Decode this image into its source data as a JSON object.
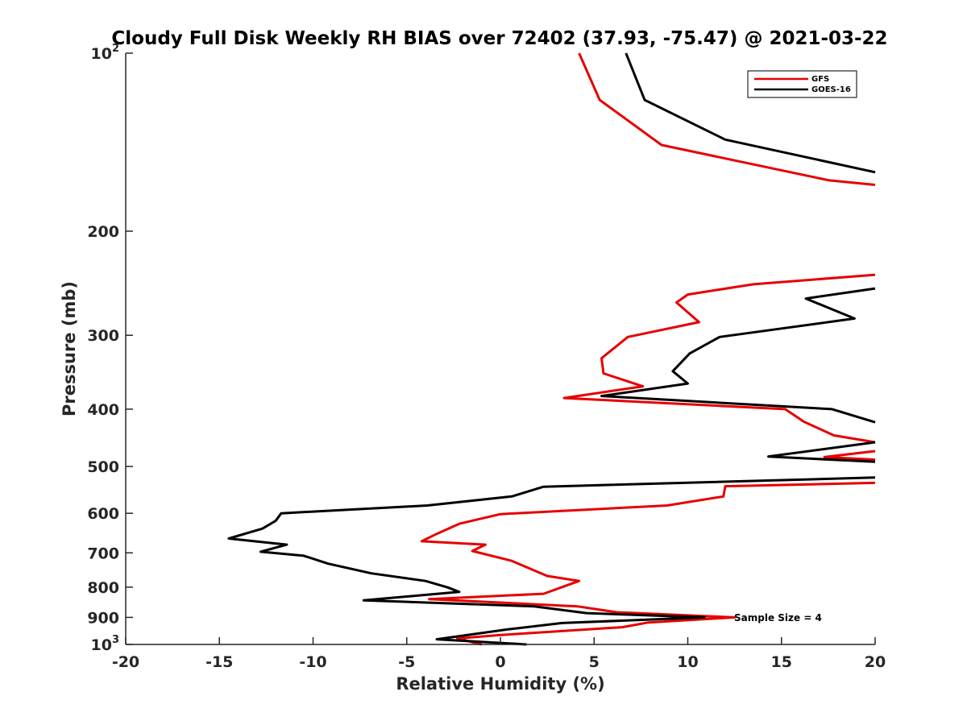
{
  "chart_data": {
    "type": "line",
    "title": "Cloudy Full Disk Weekly RH BIAS over 72402 (37.93, -75.47) @ 2021-03-22",
    "xlabel": "Relative Humidity (%)",
    "ylabel": "Pressure (mb)",
    "xlim": [
      -20,
      20
    ],
    "ylim": [
      100,
      1000
    ],
    "yscale": "log",
    "y_reversed": true,
    "xticks": [
      -20,
      -15,
      -10,
      -5,
      0,
      5,
      10,
      15,
      20
    ],
    "xtick_labels": [
      "-20",
      "-15",
      "-10",
      "-5",
      "0",
      "5",
      "10",
      "15",
      "20"
    ],
    "yticks": [
      100,
      200,
      300,
      400,
      500,
      600,
      700,
      800,
      900,
      1000
    ],
    "ytick_labels": [
      {
        "base": "10",
        "exp": "2"
      },
      {
        "base": "200",
        "exp": ""
      },
      {
        "base": "300",
        "exp": ""
      },
      {
        "base": "400",
        "exp": ""
      },
      {
        "base": "500",
        "exp": ""
      },
      {
        "base": "600",
        "exp": ""
      },
      {
        "base": "700",
        "exp": ""
      },
      {
        "base": "800",
        "exp": ""
      },
      {
        "base": "900",
        "exp": ""
      },
      {
        "base": "10",
        "exp": "3"
      }
    ],
    "grid": false,
    "legend_position": "top-right",
    "annotation": "Sample Size = 4",
    "series": [
      {
        "name": "GFS",
        "color": "#e60000",
        "points": [
          [
            4.2,
            100
          ],
          [
            5.3,
            120
          ],
          [
            8.6,
            143
          ],
          [
            17.5,
            164
          ],
          [
            20,
            167
          ],
          [
            null,
            null
          ],
          [
            20,
            237
          ],
          [
            13.5,
            246
          ],
          [
            10,
            256
          ],
          [
            9.4,
            264
          ],
          [
            10.6,
            285
          ],
          [
            6.8,
            302
          ],
          [
            5.4,
            328
          ],
          [
            5.5,
            348
          ],
          [
            7.6,
            366
          ],
          [
            3.4,
            383
          ],
          [
            15.2,
            400
          ],
          [
            16.2,
            420
          ],
          [
            17.8,
            443
          ],
          [
            20,
            455
          ],
          [
            null,
            null
          ],
          [
            20,
            471
          ],
          [
            17.3,
            482
          ],
          [
            20,
            487
          ],
          [
            null,
            null
          ],
          [
            20,
            533
          ],
          [
            12,
            540
          ],
          [
            11.9,
            562
          ],
          [
            8.9,
            582
          ],
          [
            0,
            602
          ],
          [
            -2.2,
            625
          ],
          [
            -3.4,
            650
          ],
          [
            -4.2,
            669
          ],
          [
            -0.8,
            678
          ],
          [
            -1.5,
            695
          ],
          [
            0.6,
            722
          ],
          [
            2.5,
            766
          ],
          [
            4.2,
            781
          ],
          [
            2.3,
            821
          ],
          [
            -3.8,
            838
          ],
          [
            4.1,
            862
          ],
          [
            6.2,
            882
          ],
          [
            12.5,
            900
          ],
          [
            7.9,
            918
          ],
          [
            6.5,
            935
          ],
          [
            -0.2,
            965
          ],
          [
            -2.3,
            977
          ],
          [
            -1,
            1000
          ]
        ]
      },
      {
        "name": "GOES-16",
        "color": "#000000",
        "points": [
          [
            6.7,
            100
          ],
          [
            7.7,
            120
          ],
          [
            12,
            140
          ],
          [
            20,
            159
          ],
          [
            null,
            null
          ],
          [
            20,
            250
          ],
          [
            16.3,
            260
          ],
          [
            18.9,
            281
          ],
          [
            11.7,
            302
          ],
          [
            10.1,
            322
          ],
          [
            9.2,
            345
          ],
          [
            10,
            362
          ],
          [
            5.4,
            380
          ],
          [
            17.7,
            400
          ],
          [
            20,
            421
          ],
          [
            null,
            null
          ],
          [
            20,
            455
          ],
          [
            14.3,
            481
          ],
          [
            20,
            491
          ],
          [
            null,
            null
          ],
          [
            20,
            522
          ],
          [
            2.3,
            541
          ],
          [
            0.6,
            562
          ],
          [
            -3.9,
            582
          ],
          [
            -11.7,
            600
          ],
          [
            -12,
            618
          ],
          [
            -12.7,
            637
          ],
          [
            -14.5,
            662
          ],
          [
            -11.4,
            678
          ],
          [
            -12.8,
            697
          ],
          [
            -10.5,
            708
          ],
          [
            -9.2,
            730
          ],
          [
            -6.9,
            758
          ],
          [
            -4,
            781
          ],
          [
            -2.8,
            801
          ],
          [
            -2.2,
            815
          ],
          [
            -7.3,
            842
          ],
          [
            1.8,
            862
          ],
          [
            4.6,
            885
          ],
          [
            10.9,
            900
          ],
          [
            3.3,
            920
          ],
          [
            0.4,
            943
          ],
          [
            -3.4,
            980
          ],
          [
            1.4,
            1000
          ]
        ]
      }
    ]
  }
}
